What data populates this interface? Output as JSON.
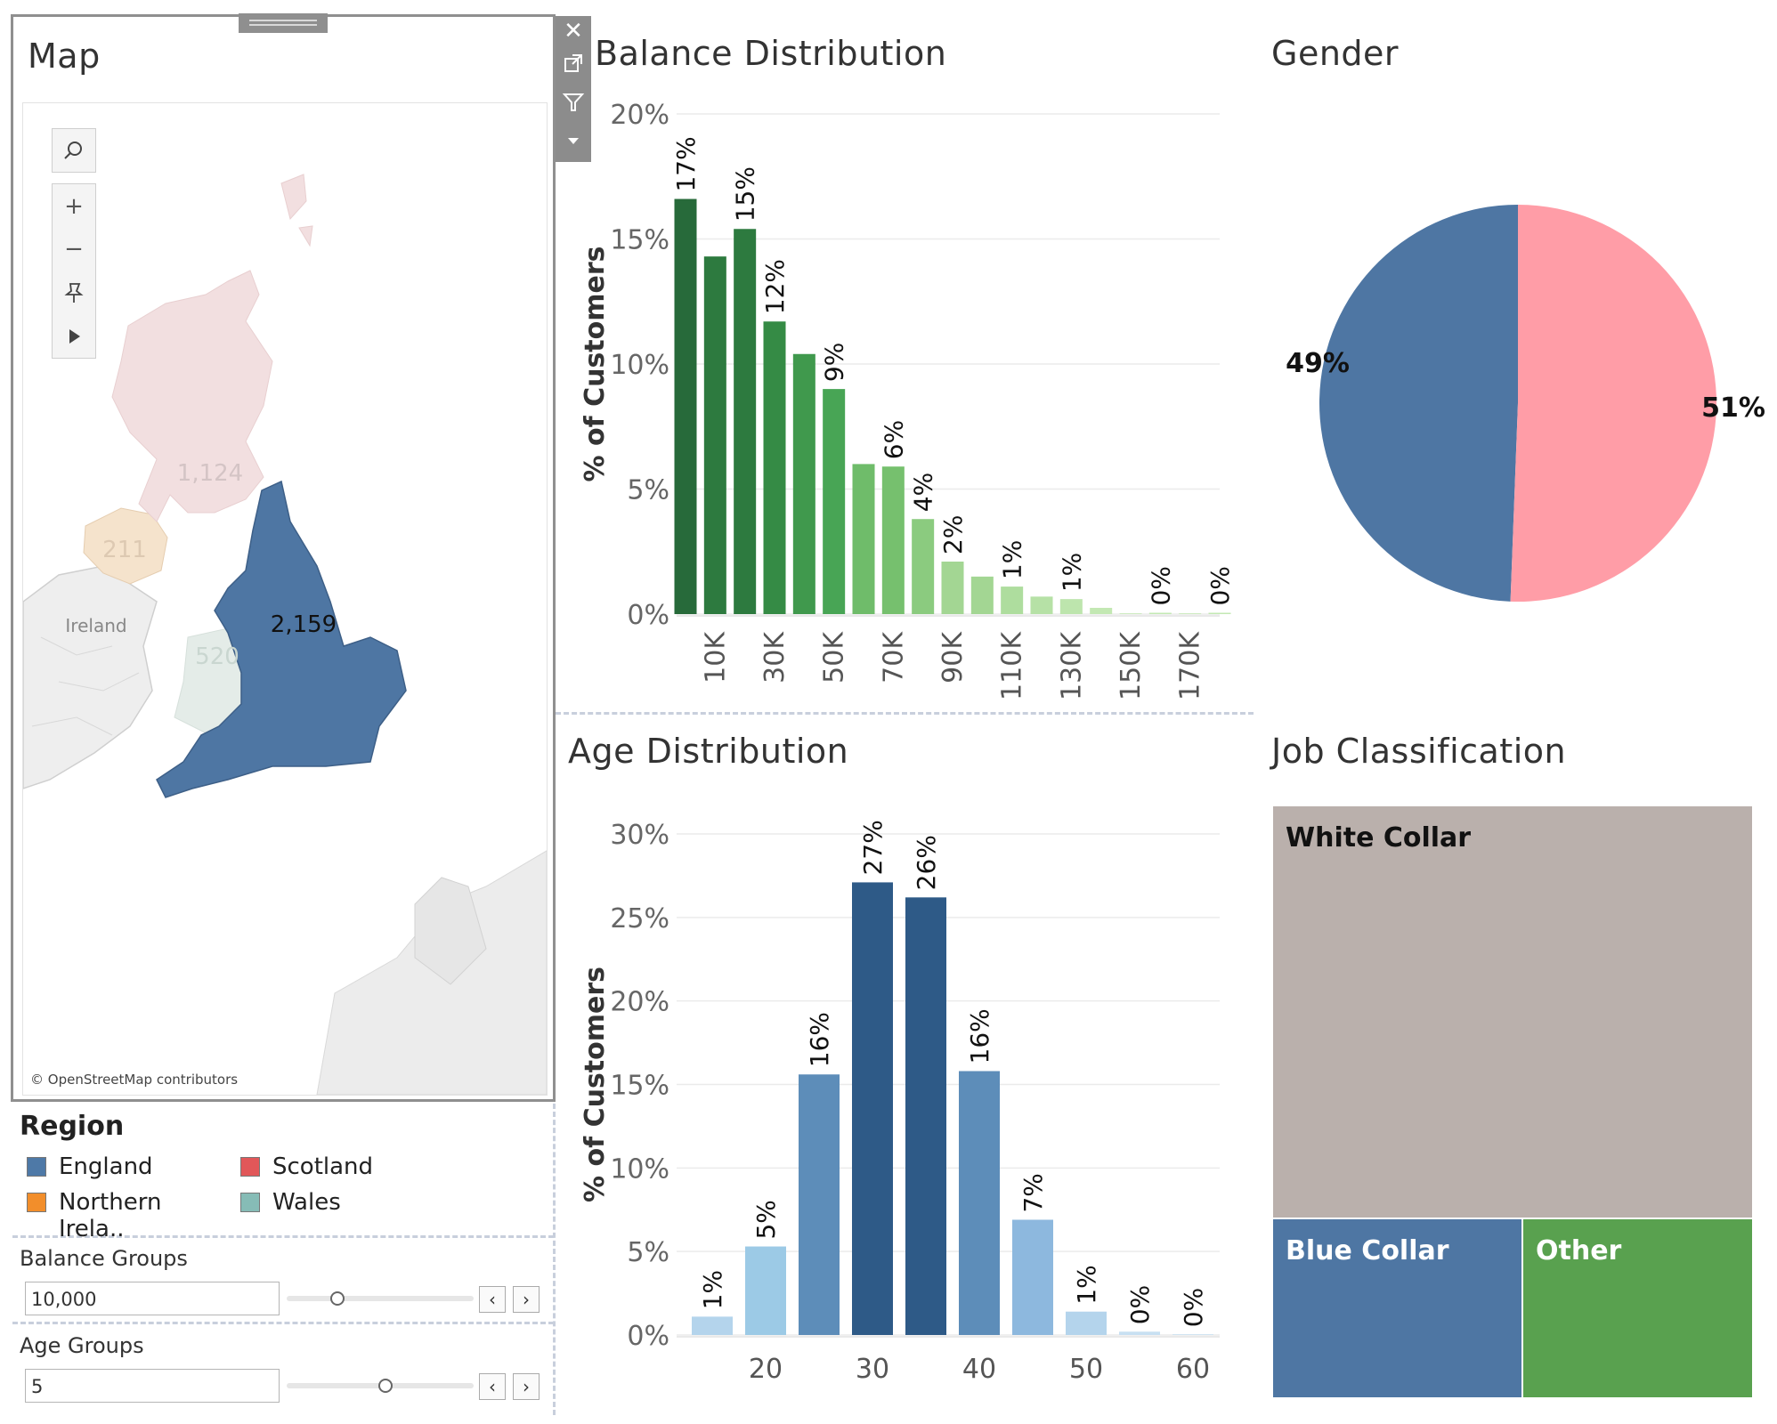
{
  "map": {
    "title": "Map",
    "labels": {
      "england": "2,159",
      "scotland": "1,124",
      "northern_ireland": "211",
      "wales": "520",
      "ireland": "Ireland"
    },
    "attribution": "© OpenStreetMap contributors",
    "tools": {
      "search": "search-icon",
      "zoom_in": "+",
      "zoom_out": "−",
      "pin": "pin-icon",
      "more": "play-icon"
    }
  },
  "legend": {
    "title": "Region",
    "items": [
      {
        "label": "England",
        "color": "#4e79a7"
      },
      {
        "label": "Scotland",
        "color": "#e15759"
      },
      {
        "label": "Northern Irela..",
        "color": "#f28e2b"
      },
      {
        "label": "Wales",
        "color": "#86bcb6"
      }
    ]
  },
  "controls": {
    "balance": {
      "label": "Balance Groups",
      "value": "10,000",
      "slider_fraction": 0.27
    },
    "age": {
      "label": "Age Groups",
      "value": "5",
      "slider_fraction": 0.53
    },
    "prev": "‹",
    "next": "›"
  },
  "toolbar": {
    "close": "✕",
    "popout": "popout-icon",
    "filter": "filter-icon",
    "menu": "menu-caret-icon"
  },
  "chart_data": [
    {
      "type": "bar",
      "title": "Balance Distribution",
      "ylabel": "% of Customers",
      "xlabel": "",
      "ylim": [
        0,
        20
      ],
      "yticks": [
        "0%",
        "5%",
        "10%",
        "15%",
        "20%"
      ],
      "xticks": [
        "10K",
        "30K",
        "50K",
        "70K",
        "90K",
        "110K",
        "130K",
        "150K",
        "170K"
      ],
      "x": [
        0,
        10,
        20,
        30,
        40,
        50,
        60,
        70,
        80,
        90,
        100,
        110,
        120,
        130,
        140,
        150,
        160,
        170,
        180
      ],
      "values": [
        16.6,
        14.3,
        15.4,
        11.7,
        10.4,
        9.0,
        6.0,
        5.9,
        3.8,
        2.1,
        1.5,
        1.1,
        0.7,
        0.6,
        0.25,
        0.0,
        0.05,
        0.0,
        0.05
      ],
      "labels": [
        "17%",
        "",
        "15%",
        "12%",
        "",
        "9%",
        "",
        "6%",
        "4%",
        "2%",
        "",
        "1%",
        "",
        "1%",
        "",
        "",
        "0%",
        "",
        "0%"
      ],
      "colors": [
        "#276a3a",
        "#2d7a3f",
        "#2d7a3f",
        "#358b45",
        "#40994d",
        "#48a555",
        "#6fbc6a",
        "#76c06e",
        "#8bcb7f",
        "#a3d693",
        "#a3d693",
        "#aedd9e",
        "#b6e1a6",
        "#bde5ad",
        "#c3e8b3",
        "#c3e8b3",
        "#c3e8b3",
        "#c3e8b3",
        "#c3e8b3"
      ]
    },
    {
      "type": "pie",
      "title": "Gender",
      "slices": [
        {
          "label": "49%",
          "value": 49.4,
          "color": "#4e76a3"
        },
        {
          "label": "51%",
          "value": 50.6,
          "color": "#ff9da7"
        }
      ]
    },
    {
      "type": "bar",
      "title": "Age Distribution",
      "ylabel": "% of Customers",
      "xlabel": "",
      "ylim": [
        0,
        30
      ],
      "yticks": [
        "0%",
        "5%",
        "10%",
        "15%",
        "20%",
        "25%",
        "30%"
      ],
      "xticks": [
        "20",
        "30",
        "40",
        "50",
        "60"
      ],
      "x": [
        15,
        20,
        25,
        30,
        35,
        40,
        45,
        50,
        55,
        60
      ],
      "values": [
        1.1,
        5.3,
        15.6,
        27.1,
        26.2,
        15.8,
        6.9,
        1.4,
        0.2,
        0.0
      ],
      "labels": [
        "1%",
        "5%",
        "16%",
        "27%",
        "26%",
        "16%",
        "7%",
        "1%",
        "0%",
        "0%"
      ],
      "colors": [
        "#b4d4ec",
        "#9ccae6",
        "#5d8db9",
        "#2e5a87",
        "#2e5a87",
        "#5d8db9",
        "#8db8de",
        "#b4d4ec",
        "#c8e0f2",
        "#c8e0f2"
      ]
    },
    {
      "type": "treemap",
      "title": "Job Classification",
      "items": [
        {
          "label": "White Collar",
          "color": "#bab0ac"
        },
        {
          "label": "Blue Collar",
          "color": "#4e76a3"
        },
        {
          "label": "Other",
          "color": "#59a14f"
        }
      ]
    }
  ]
}
